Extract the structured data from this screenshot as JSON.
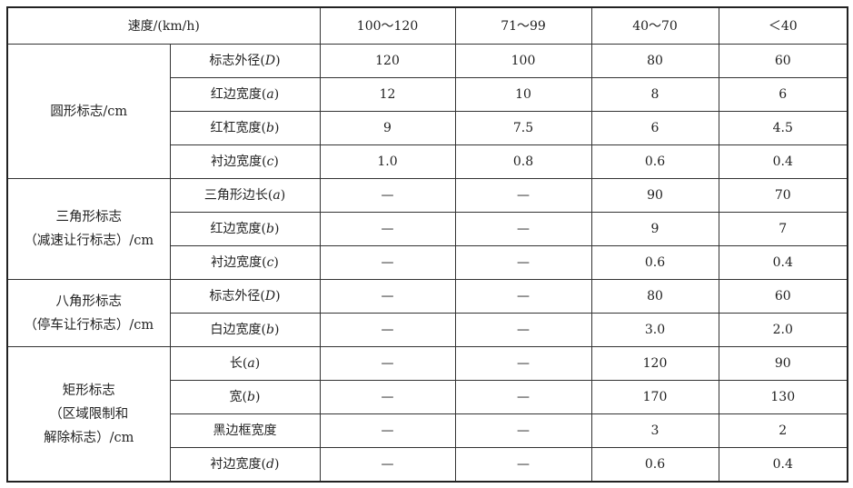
{
  "header": {
    "speed_label": "速度/(km/h)",
    "speed_ranges": [
      "100～120",
      "71～99",
      "40～70",
      "＜40"
    ]
  },
  "groups": [
    {
      "label_lines": [
        "圆形标志/cm"
      ],
      "rows": [
        {
          "item": "标志外径",
          "var": "D",
          "values": [
            "120",
            "100",
            "80",
            "60"
          ]
        },
        {
          "item": "红边宽度",
          "var": "a",
          "values": [
            "12",
            "10",
            "8",
            "6"
          ]
        },
        {
          "item": "红杠宽度",
          "var": "b",
          "values": [
            "9",
            "7.5",
            "6",
            "4.5"
          ]
        },
        {
          "item": "衬边宽度",
          "var": "c",
          "values": [
            "1.0",
            "0.8",
            "0.6",
            "0.4"
          ]
        }
      ]
    },
    {
      "label_lines": [
        "三角形标志",
        "（减速让行标志）/cm"
      ],
      "rows": [
        {
          "item": "三角形边长",
          "var": "a",
          "values": [
            "—",
            "—",
            "90",
            "70"
          ]
        },
        {
          "item": "红边宽度",
          "var": "b",
          "values": [
            "—",
            "—",
            "9",
            "7"
          ]
        },
        {
          "item": "衬边宽度",
          "var": "c",
          "values": [
            "—",
            "—",
            "0.6",
            "0.4"
          ]
        }
      ]
    },
    {
      "label_lines": [
        "八角形标志",
        "（停车让行标志）/cm"
      ],
      "rows": [
        {
          "item": "标志外径",
          "var": "D",
          "values": [
            "—",
            "—",
            "80",
            "60"
          ]
        },
        {
          "item": "白边宽度",
          "var": "b",
          "values": [
            "—",
            "—",
            "3.0",
            "2.0"
          ]
        }
      ]
    },
    {
      "label_lines": [
        "矩形标志",
        "（区域限制和",
        "解除标志）/cm"
      ],
      "rows": [
        {
          "item": "长",
          "var": "a",
          "values": [
            "—",
            "—",
            "120",
            "90"
          ]
        },
        {
          "item": "宽",
          "var": "b",
          "values": [
            "—",
            "—",
            "170",
            "130"
          ]
        },
        {
          "item": "黑边框宽度",
          "var": null,
          "values": [
            "—",
            "—",
            "3",
            "2"
          ]
        },
        {
          "item": "衬边宽度",
          "var": "d",
          "values": [
            "—",
            "—",
            "0.6",
            "0.4"
          ]
        }
      ]
    }
  ]
}
